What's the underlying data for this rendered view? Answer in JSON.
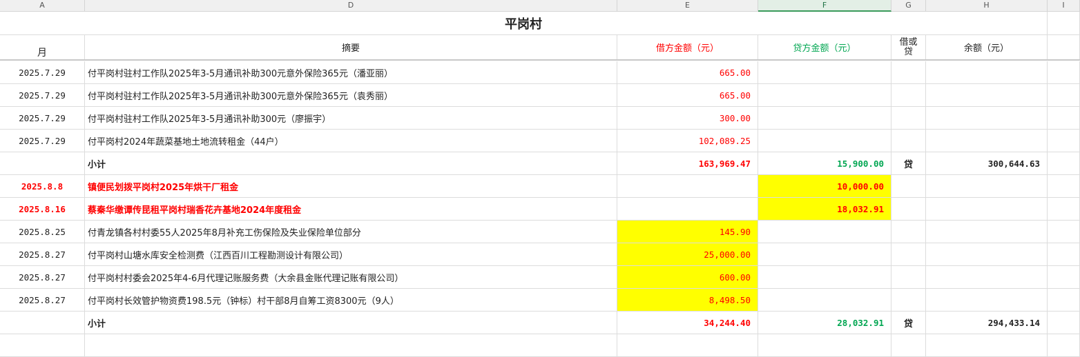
{
  "columns": [
    "A",
    "D",
    "E",
    "F",
    "G",
    "H",
    "I"
  ],
  "title": "平岗村",
  "headers": {
    "month": "月",
    "summary": "摘要",
    "debit": "借方金额（元）",
    "credit": "贷方金额（元）",
    "dc": "借或\n贷",
    "balance": "余额（元）"
  },
  "rows": [
    {
      "date": "2025.7.29",
      "summary": "付平岗村驻村工作队2025年3-5月通讯补助300元意外保险365元（潘亚丽）",
      "debit": "665.00",
      "credit": "",
      "dc": "",
      "balance": ""
    },
    {
      "date": "2025.7.29",
      "summary": "付平岗村驻村工作队2025年3-5月通讯补助300元意外保险365元（袁秀丽）",
      "debit": "665.00",
      "credit": "",
      "dc": "",
      "balance": ""
    },
    {
      "date": "2025.7.29",
      "summary": "付平岗村驻村工作队2025年3-5月通讯补助300元（廖振宇）",
      "debit": "300.00",
      "credit": "",
      "dc": "",
      "balance": ""
    },
    {
      "date": "2025.7.29",
      "summary": "付平岗村2024年蔬菜基地土地流转租金（44户）",
      "debit": "102,089.25",
      "credit": "",
      "dc": "",
      "balance": ""
    },
    {
      "date": "",
      "summary": "小计",
      "debit": "163,969.47",
      "credit": "15,900.00",
      "dc": "贷",
      "balance": "300,644.63",
      "subtotal": true
    },
    {
      "date": "2025.8.8",
      "summary": "镇便民划拨平岗村2025年烘干厂租金",
      "debit": "",
      "credit": "10,000.00",
      "dc": "",
      "balance": "",
      "highlight": true,
      "creditYellow": true
    },
    {
      "date": "2025.8.16",
      "summary": "蔡秦华缴谭传昆租平岗村瑞香花卉基地2024年度租金",
      "debit": "",
      "credit": "18,032.91",
      "dc": "",
      "balance": "",
      "highlight": true,
      "creditYellow": true
    },
    {
      "date": "2025.8.25",
      "summary": "付青龙镇各村村委55人2025年8月补充工伤保险及失业保险单位部分",
      "debit": "145.90",
      "credit": "",
      "dc": "",
      "balance": "",
      "debitYellow": true
    },
    {
      "date": "2025.8.27",
      "summary": "付平岗村山塘水库安全检测费（江西百川工程勘测设计有限公司）",
      "debit": "25,000.00",
      "credit": "",
      "dc": "",
      "balance": "",
      "debitYellow": true
    },
    {
      "date": "2025.8.27",
      "summary": "付平岗村村委会2025年4-6月代理记账服务费（大余县金账代理记账有限公司）",
      "debit": "600.00",
      "credit": "",
      "dc": "",
      "balance": "",
      "debitYellow": true
    },
    {
      "date": "2025.8.27",
      "summary": "付平岗村长效管护物资费198.5元（钟标）村干部8月自筹工资8300元（9人）",
      "debit": "8,498.50",
      "credit": "",
      "dc": "",
      "balance": "",
      "debitYellow": true
    },
    {
      "date": "",
      "summary": "小计",
      "debit": "34,244.40",
      "credit": "28,032.91",
      "dc": "贷",
      "balance": "294,433.14",
      "subtotal": true
    },
    {
      "date": "",
      "summary": "",
      "debit": "",
      "credit": "",
      "dc": "",
      "balance": ""
    }
  ],
  "colors": {
    "debit": "#ff0000",
    "credit": "#00a651",
    "highlight": "#ffff00"
  }
}
